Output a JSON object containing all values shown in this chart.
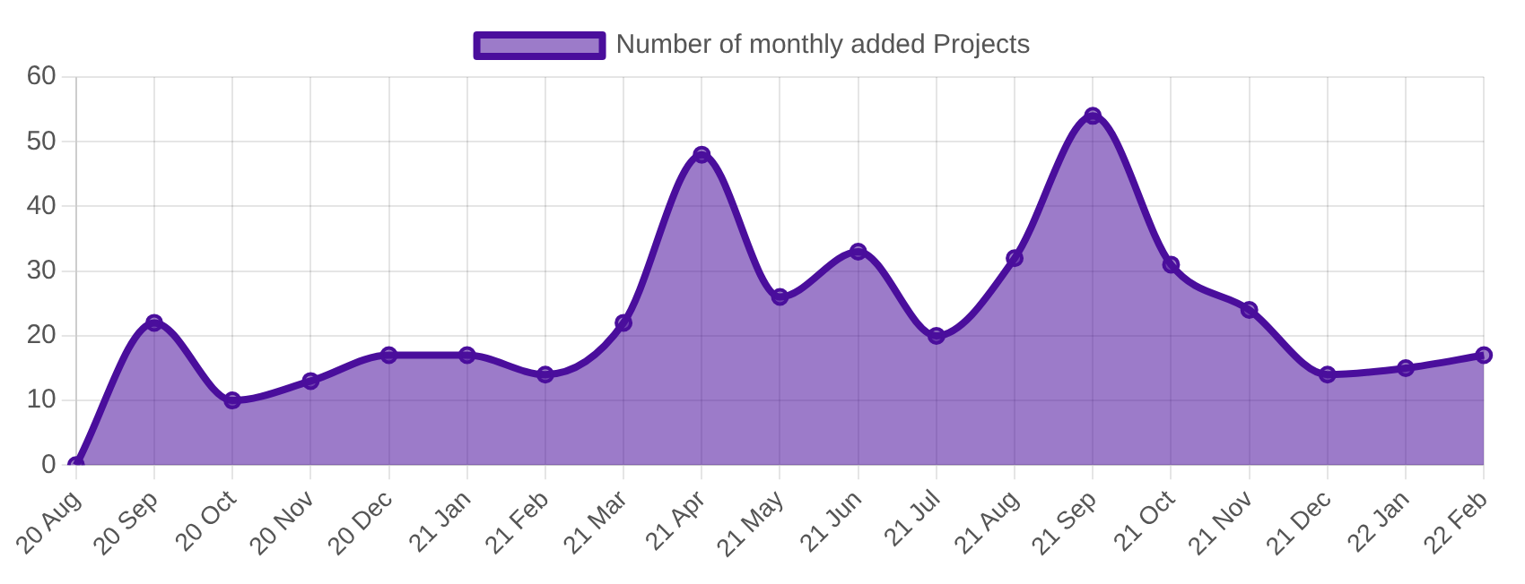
{
  "chart_data": {
    "type": "area",
    "categories": [
      "20 Aug",
      "20 Sep",
      "20 Oct",
      "20 Nov",
      "20 Dec",
      "21 Jan",
      "21 Feb",
      "21 Mar",
      "21 Apr",
      "21 May",
      "21 Jun",
      "21 Jul",
      "21 Aug",
      "21 Sep",
      "21 Oct",
      "21 Nov",
      "21 Dec",
      "22 Jan",
      "22 Feb"
    ],
    "series": [
      {
        "name": "Number of monthly added Projects",
        "color": "#4a0e9c",
        "values": [
          0,
          22,
          10,
          13,
          17,
          17,
          14,
          22,
          48,
          26,
          33,
          20,
          32,
          54,
          31,
          24,
          14,
          15,
          17
        ]
      }
    ],
    "ylim": [
      0,
      60
    ],
    "yticks": [
      0,
      10,
      20,
      30,
      40,
      50,
      60
    ],
    "grid": true,
    "legend": "top",
    "marker": "circle",
    "line_style": "solid"
  }
}
